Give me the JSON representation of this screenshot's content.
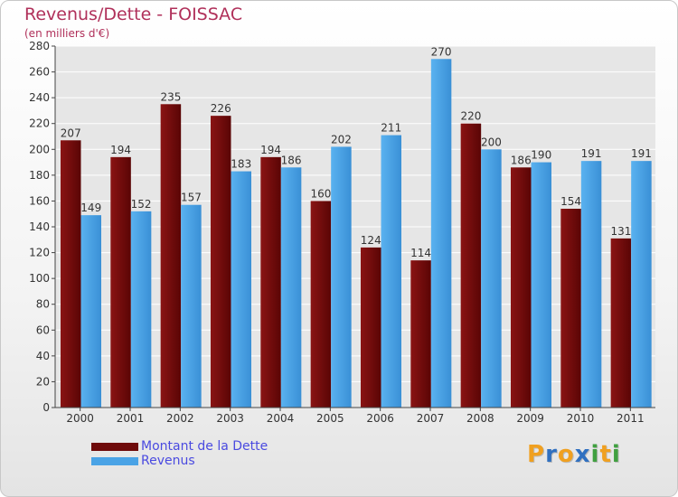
{
  "chart_data": {
    "type": "bar",
    "title": "Revenus/Dette - FOISSAC",
    "subtitle": "(en milliers d'€)",
    "categories": [
      "2000",
      "2001",
      "2002",
      "2003",
      "2004",
      "2005",
      "2006",
      "2007",
      "2008",
      "2009",
      "2010",
      "2011"
    ],
    "series": [
      {
        "name": "Montant de la Dette",
        "color": "#6e0a0a",
        "values": [
          207,
          194,
          235,
          226,
          194,
          160,
          124,
          114,
          220,
          186,
          154,
          131
        ]
      },
      {
        "name": "Revenus",
        "color": "#4aa3e6",
        "values": [
          149,
          152,
          157,
          183,
          186,
          202,
          211,
          270,
          200,
          190,
          191,
          191
        ]
      }
    ],
    "ylim": [
      0,
      280
    ],
    "yticks": [
      0,
      20,
      40,
      60,
      80,
      100,
      120,
      140,
      160,
      180,
      200,
      220,
      240,
      260,
      280
    ],
    "grid": true,
    "legend_position": "bottom-left"
  },
  "logo": {
    "letters": [
      {
        "ch": "P",
        "color": "#f0a020"
      },
      {
        "ch": "r",
        "color": "#3070c0"
      },
      {
        "ch": "o",
        "color": "#f0a020"
      },
      {
        "ch": "x",
        "color": "#3070c0"
      },
      {
        "ch": "i",
        "color": "#40a040"
      },
      {
        "ch": "t",
        "color": "#f0a020"
      },
      {
        "ch": "i",
        "color": "#40a040"
      }
    ]
  }
}
